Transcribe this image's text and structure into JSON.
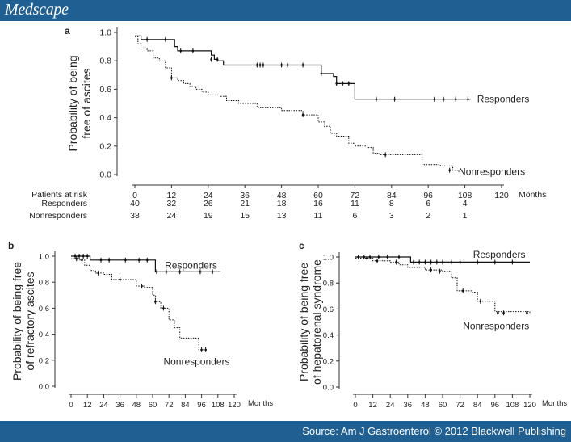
{
  "header": {
    "brand": "Medscape"
  },
  "footer": {
    "source": "Source: Am J Gastroenterol © 2012 Blackwell Publishing"
  },
  "chart_data": [
    {
      "id": "a",
      "panel_label": "a",
      "type": "line",
      "step": true,
      "ylabel_lines": [
        "Probability of being",
        "free of ascites"
      ],
      "xlabel": "Months",
      "xlim": [
        0,
        120
      ],
      "ylim": [
        0,
        1
      ],
      "xticks": [
        0,
        12,
        24,
        36,
        48,
        60,
        72,
        84,
        96,
        108,
        120
      ],
      "yticks": [
        0.0,
        0.2,
        0.4,
        0.6,
        0.8,
        1.0
      ],
      "ytick_labels": [
        "0.0",
        "0.2",
        "0.4",
        "0.6",
        "0.8",
        "1.0"
      ],
      "series": [
        {
          "name": "Responders",
          "style": "solid",
          "points": [
            [
              0,
              0.975
            ],
            [
              2,
              0.95
            ],
            [
              12,
              0.95
            ],
            [
              13,
              0.9
            ],
            [
              14,
              0.87
            ],
            [
              22,
              0.87
            ],
            [
              25,
              0.84
            ],
            [
              26,
              0.81
            ],
            [
              27,
              0.8
            ],
            [
              29,
              0.77
            ],
            [
              60,
              0.77
            ],
            [
              61,
              0.71
            ],
            [
              65,
              0.69
            ],
            [
              66,
              0.64
            ],
            [
              70,
              0.64
            ],
            [
              72,
              0.53
            ],
            [
              110,
              0.53
            ]
          ],
          "censor": [
            [
              4,
              0.95
            ],
            [
              10,
              0.95
            ],
            [
              15,
              0.87
            ],
            [
              19,
              0.87
            ],
            [
              25,
              0.81
            ],
            [
              27,
              0.81
            ],
            [
              40,
              0.77
            ],
            [
              41,
              0.77
            ],
            [
              42,
              0.77
            ],
            [
              48,
              0.77
            ],
            [
              50,
              0.77
            ],
            [
              55,
              0.77
            ],
            [
              61,
              0.71
            ],
            [
              66,
              0.64
            ],
            [
              68,
              0.64
            ],
            [
              70,
              0.64
            ],
            [
              79,
              0.53
            ],
            [
              85,
              0.53
            ],
            [
              98,
              0.53
            ],
            [
              101,
              0.53
            ],
            [
              105,
              0.53
            ],
            [
              109,
              0.53
            ]
          ]
        },
        {
          "name": "Nonresponders",
          "style": "dotted",
          "points": [
            [
              0,
              0.97
            ],
            [
              1,
              0.92
            ],
            [
              2,
              0.89
            ],
            [
              4,
              0.87
            ],
            [
              6,
              0.82
            ],
            [
              8,
              0.8
            ],
            [
              10,
              0.75
            ],
            [
              12,
              0.68
            ],
            [
              14,
              0.66
            ],
            [
              16,
              0.64
            ],
            [
              18,
              0.62
            ],
            [
              20,
              0.6
            ],
            [
              22,
              0.58
            ],
            [
              24,
              0.56
            ],
            [
              28,
              0.55
            ],
            [
              30,
              0.52
            ],
            [
              34,
              0.5
            ],
            [
              40,
              0.47
            ],
            [
              48,
              0.45
            ],
            [
              55,
              0.42
            ],
            [
              58,
              0.42
            ],
            [
              60,
              0.37
            ],
            [
              62,
              0.34
            ],
            [
              64,
              0.29
            ],
            [
              66,
              0.27
            ],
            [
              70,
              0.22
            ],
            [
              72,
              0.2
            ],
            [
              76,
              0.19
            ],
            [
              78,
              0.15
            ],
            [
              80,
              0.14
            ],
            [
              94,
              0.07
            ],
            [
              100,
              0.06
            ],
            [
              104,
              0.03
            ],
            [
              106,
              0.01
            ]
          ],
          "censor": [
            [
              12,
              0.68
            ],
            [
              55,
              0.42
            ],
            [
              82,
              0.14
            ],
            [
              103,
              0.03
            ]
          ]
        }
      ],
      "annotations": [
        {
          "text": "Responders",
          "x": 112,
          "y": 0.53,
          "anchor": "start"
        },
        {
          "text": "Nonresponders",
          "x": 106,
          "y": 0.02,
          "anchor": "start"
        }
      ],
      "risk_table": {
        "header": "Patients at risk",
        "rows": [
          {
            "label": "Responders",
            "values": [
              "40",
              "32",
              "26",
              "21",
              "18",
              "16",
              "11",
              "8",
              "6",
              "4"
            ]
          },
          {
            "label": "Nonresponders",
            "values": [
              "38",
              "24",
              "19",
              "15",
              "13",
              "11",
              "6",
              "3",
              "2",
              "1"
            ]
          }
        ]
      }
    },
    {
      "id": "b",
      "panel_label": "b",
      "type": "line",
      "step": true,
      "ylabel_lines": [
        "Probability of being free",
        "of refractory ascites"
      ],
      "xlabel": "Months",
      "xlim": [
        0,
        120
      ],
      "ylim": [
        0,
        1
      ],
      "xticks": [
        0,
        12,
        24,
        36,
        48,
        60,
        72,
        84,
        96,
        108,
        120
      ],
      "yticks": [
        0.0,
        0.2,
        0.4,
        0.6,
        0.8,
        1.0
      ],
      "ytick_labels": [
        "0.0",
        "0.2",
        "0.4",
        "0.6",
        "0.8",
        "1.0"
      ],
      "series": [
        {
          "name": "Responders",
          "style": "solid",
          "points": [
            [
              0,
              1.0
            ],
            [
              12,
              1.0
            ],
            [
              14,
              0.97
            ],
            [
              16,
              0.97
            ],
            [
              60,
              0.97
            ],
            [
              62,
              0.88
            ],
            [
              110,
              0.88
            ]
          ],
          "censor": [
            [
              3,
              1.0
            ],
            [
              6,
              1.0
            ],
            [
              9,
              1.0
            ],
            [
              12,
              1.0
            ],
            [
              22,
              0.97
            ],
            [
              28,
              0.97
            ],
            [
              40,
              0.97
            ],
            [
              50,
              0.97
            ],
            [
              56,
              0.97
            ],
            [
              63,
              0.88
            ],
            [
              70,
              0.88
            ],
            [
              80,
              0.88
            ],
            [
              95,
              0.88
            ],
            [
              104,
              0.88
            ]
          ]
        },
        {
          "name": "Nonresponders",
          "style": "dotted",
          "points": [
            [
              0,
              0.98
            ],
            [
              6,
              0.97
            ],
            [
              10,
              0.93
            ],
            [
              14,
              0.89
            ],
            [
              18,
              0.87
            ],
            [
              24,
              0.86
            ],
            [
              30,
              0.82
            ],
            [
              42,
              0.82
            ],
            [
              48,
              0.77
            ],
            [
              54,
              0.76
            ],
            [
              60,
              0.7
            ],
            [
              62,
              0.65
            ],
            [
              66,
              0.6
            ],
            [
              72,
              0.51
            ],
            [
              76,
              0.45
            ],
            [
              80,
              0.37
            ],
            [
              94,
              0.28
            ],
            [
              100,
              0.28
            ]
          ],
          "censor": [
            [
              4,
              0.98
            ],
            [
              8,
              0.97
            ],
            [
              20,
              0.87
            ],
            [
              36,
              0.82
            ],
            [
              52,
              0.77
            ],
            [
              62,
              0.65
            ],
            [
              68,
              0.6
            ],
            [
              96,
              0.28
            ],
            [
              99,
              0.28
            ]
          ]
        }
      ],
      "annotations": [
        {
          "text": "Responders",
          "x": 69,
          "y": 0.93,
          "anchor": "start"
        },
        {
          "text": "Nonresponders",
          "x": 68,
          "y": 0.19,
          "anchor": "start"
        }
      ]
    },
    {
      "id": "c",
      "panel_label": "c",
      "type": "line",
      "step": true,
      "ylabel_lines": [
        "Probability of being free",
        "of hepatorenal syndrome"
      ],
      "xlabel": "Months",
      "xlim": [
        0,
        120
      ],
      "ylim": [
        0,
        1
      ],
      "xticks": [
        0,
        12,
        24,
        36,
        48,
        60,
        72,
        84,
        96,
        108,
        120
      ],
      "yticks": [
        0.0,
        0.2,
        0.4,
        0.6,
        0.8,
        1.0
      ],
      "ytick_labels": [
        "0.0",
        "0.2",
        "0.4",
        "0.6",
        "0.8",
        "1.0"
      ],
      "series": [
        {
          "name": "Responders",
          "style": "solid",
          "points": [
            [
              0,
              1.0
            ],
            [
              36,
              1.0
            ],
            [
              38,
              0.96
            ],
            [
              120,
              0.96
            ]
          ],
          "censor": [
            [
              2,
              1.0
            ],
            [
              6,
              1.0
            ],
            [
              10,
              1.0
            ],
            [
              16,
              1.0
            ],
            [
              22,
              1.0
            ],
            [
              30,
              1.0
            ],
            [
              40,
              0.96
            ],
            [
              44,
              0.96
            ],
            [
              48,
              0.96
            ],
            [
              52,
              0.96
            ],
            [
              56,
              0.96
            ],
            [
              60,
              0.96
            ],
            [
              66,
              0.96
            ],
            [
              72,
              0.96
            ],
            [
              84,
              0.96
            ],
            [
              96,
              0.96
            ],
            [
              108,
              0.96
            ]
          ]
        },
        {
          "name": "Nonresponders",
          "style": "dotted",
          "points": [
            [
              0,
              0.99
            ],
            [
              12,
              0.97
            ],
            [
              24,
              0.96
            ],
            [
              30,
              0.94
            ],
            [
              36,
              0.92
            ],
            [
              48,
              0.9
            ],
            [
              60,
              0.89
            ],
            [
              66,
              0.84
            ],
            [
              70,
              0.74
            ],
            [
              80,
              0.73
            ],
            [
              84,
              0.66
            ],
            [
              96,
              0.58
            ],
            [
              120,
              0.57
            ]
          ],
          "censor": [
            [
              8,
              0.99
            ],
            [
              15,
              0.97
            ],
            [
              28,
              0.96
            ],
            [
              52,
              0.9
            ],
            [
              58,
              0.89
            ],
            [
              74,
              0.74
            ],
            [
              86,
              0.66
            ],
            [
              98,
              0.57
            ],
            [
              102,
              0.57
            ],
            [
              118,
              0.57
            ]
          ]
        }
      ],
      "annotations": [
        {
          "text": "Responders",
          "x": 81,
          "y": 1.02,
          "anchor": "start"
        },
        {
          "text": "Nonresponders",
          "x": 74,
          "y": 0.47,
          "anchor": "start"
        }
      ]
    }
  ]
}
